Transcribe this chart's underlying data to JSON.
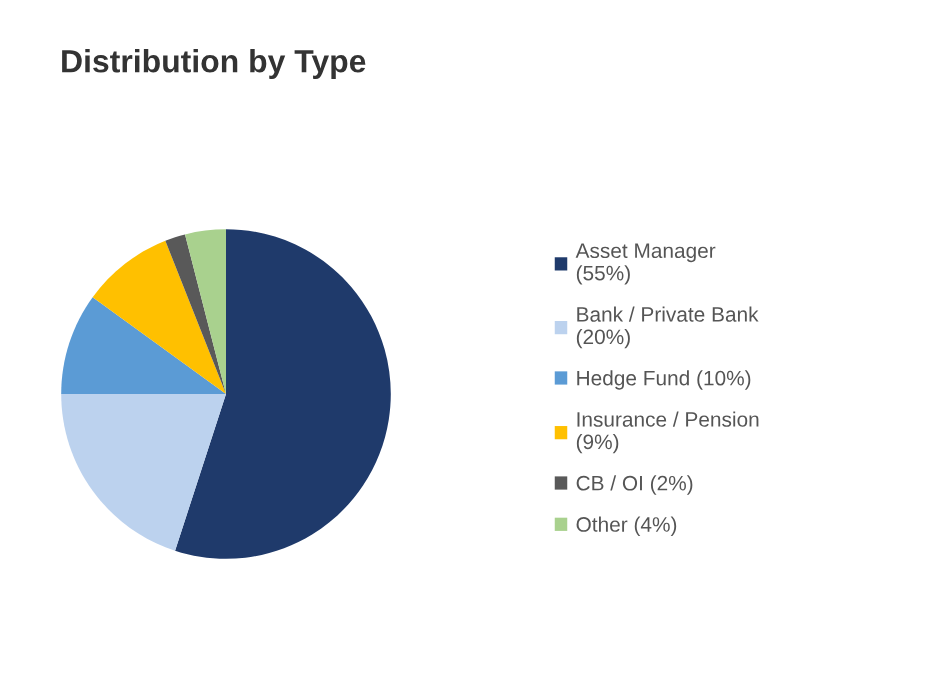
{
  "chart_data": {
    "type": "pie",
    "title": "Distribution by Type",
    "categories": [
      "Asset Manager\n(55%)",
      "Bank / Private Bank\n(20%)",
      "Hedge Fund (10%)",
      "Insurance / Pension\n(9%)",
      "CB / OI (2%)",
      "Other (4%)"
    ],
    "values": [
      55,
      20,
      10,
      9,
      2,
      4
    ],
    "colors": [
      "#1f3a6b",
      "#bcd2ee",
      "#5b9bd5",
      "#ffc000",
      "#595959",
      "#a9d18e"
    ],
    "legend": "right"
  }
}
